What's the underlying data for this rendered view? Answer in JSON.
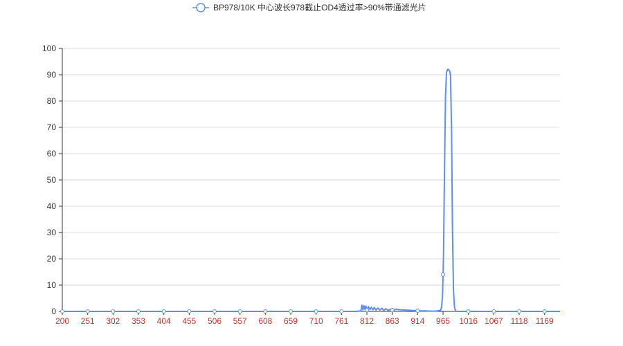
{
  "chart_data": {
    "type": "line",
    "title": "",
    "xlabel": "",
    "ylabel": "",
    "legend": {
      "position": "top-center"
    },
    "grid": {
      "y": true,
      "x": false
    },
    "xlim": [
      200,
      1200
    ],
    "ylim": [
      0,
      100
    ],
    "x_ticks": [
      200,
      251,
      302,
      353,
      404,
      455,
      506,
      557,
      608,
      659,
      710,
      761,
      812,
      863,
      914,
      965,
      1016,
      1067,
      1118,
      1169
    ],
    "y_ticks": [
      0,
      10,
      20,
      30,
      40,
      50,
      60,
      70,
      80,
      90,
      100
    ],
    "colors": {
      "series": "#5b8ff9",
      "x_tick_label": "#c23531",
      "grid": "#d9d9d9",
      "axis": "#333333"
    },
    "series": [
      {
        "name": "BP978/10K 中心波长978截止OD4透过率>90%带通滤光片",
        "x": [
          200,
          250,
          300,
          350,
          400,
          450,
          500,
          550,
          600,
          650,
          700,
          750,
          790,
          800,
          802,
          804,
          806,
          808,
          810,
          812,
          815,
          818,
          821,
          824,
          827,
          830,
          834,
          838,
          842,
          846,
          850,
          855,
          860,
          865,
          870,
          880,
          890,
          900,
          910,
          920,
          930,
          940,
          950,
          960,
          962,
          964,
          966,
          968,
          970,
          972,
          974,
          976,
          978,
          980,
          982,
          984,
          986,
          988,
          990,
          992,
          995,
          1000,
          1020,
          1050,
          1100,
          1150,
          1200
        ],
        "values": [
          0,
          0,
          0,
          0,
          0,
          0,
          0,
          0,
          0,
          0,
          0,
          0,
          0,
          0.2,
          2.4,
          0.6,
          2.2,
          0.8,
          2.0,
          0.5,
          1.8,
          0.7,
          1.6,
          0.6,
          1.5,
          0.5,
          1.3,
          0.5,
          1.2,
          0.4,
          1.0,
          0.4,
          0.9,
          0.3,
          0.8,
          0.6,
          0.5,
          0.4,
          0.3,
          0.2,
          0.2,
          0.1,
          0.1,
          0.4,
          1.5,
          6,
          22,
          55,
          82,
          91,
          92,
          92,
          91.5,
          90,
          70,
          30,
          8,
          1.5,
          0.3,
          0,
          0,
          0,
          0,
          0,
          0,
          0,
          0
        ]
      }
    ]
  }
}
